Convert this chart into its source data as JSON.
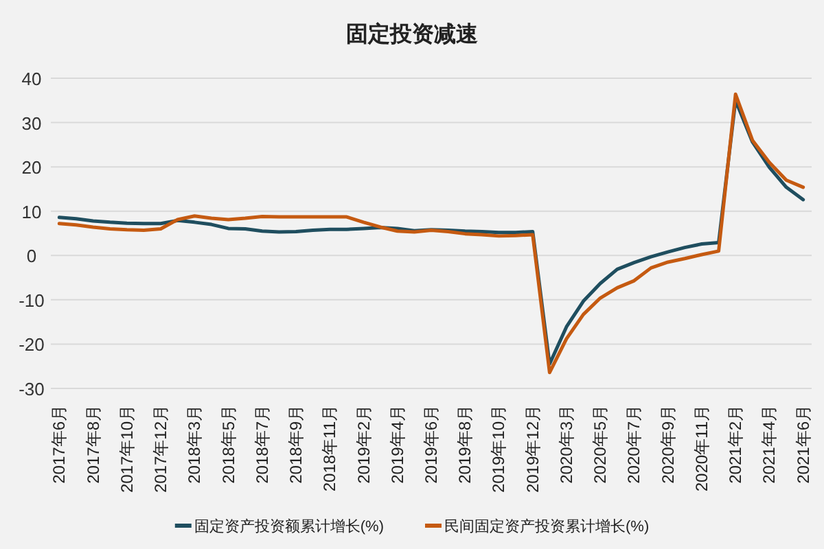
{
  "chart_data": {
    "type": "line",
    "title": "固定投资减速",
    "categories": [
      "2017年6月",
      null,
      "2017年8月",
      null,
      "2017年10月",
      null,
      "2017年12月",
      null,
      "2018年3月",
      null,
      "2018年5月",
      null,
      "2018年7月",
      null,
      "2018年9月",
      null,
      "2018年11月",
      null,
      "2019年2月",
      null,
      "2019年4月",
      null,
      "2019年6月",
      null,
      "2019年8月",
      null,
      "2019年10月",
      null,
      "2019年12月",
      null,
      "2020年3月",
      null,
      "2020年5月",
      null,
      "2020年7月",
      null,
      "2020年9月",
      null,
      "2020年11月",
      null,
      "2021年2月",
      null,
      "2021年4月",
      null,
      "2021年6月"
    ],
    "series": [
      {
        "name": "固定资产投资额累计增长(%)",
        "color": "#1f4e5f",
        "values": [
          8.6,
          8.3,
          7.8,
          7.5,
          7.3,
          7.2,
          7.2,
          7.9,
          7.5,
          7.0,
          6.1,
          6.0,
          5.5,
          5.3,
          5.4,
          5.7,
          5.9,
          5.9,
          6.1,
          6.3,
          6.1,
          5.6,
          5.8,
          5.7,
          5.5,
          5.4,
          5.2,
          5.2,
          5.4,
          -24.5,
          -16.1,
          -10.3,
          -6.3,
          -3.1,
          -1.6,
          -0.3,
          0.8,
          1.8,
          2.6,
          2.9,
          35.0,
          25.6,
          19.9,
          15.4,
          12.6
        ]
      },
      {
        "name": "民间固定资产投资累计增长(%)",
        "color": "#c55a11",
        "values": [
          7.2,
          6.9,
          6.4,
          6.0,
          5.8,
          5.7,
          6.0,
          8.1,
          8.9,
          8.4,
          8.1,
          8.4,
          8.8,
          8.7,
          8.7,
          8.7,
          8.7,
          8.7,
          7.5,
          6.4,
          5.5,
          5.3,
          5.7,
          5.4,
          4.9,
          4.7,
          4.4,
          4.5,
          4.7,
          -26.4,
          -18.8,
          -13.3,
          -9.6,
          -7.3,
          -5.7,
          -2.8,
          -1.5,
          -0.7,
          0.2,
          1.0,
          36.4,
          26.0,
          21.0,
          17.0,
          15.4
        ]
      }
    ],
    "ylim": [
      -30,
      40
    ],
    "yticks": [
      -30,
      -20,
      -10,
      0,
      10,
      20,
      30,
      40
    ],
    "grid": "y",
    "legend": "bottom"
  }
}
